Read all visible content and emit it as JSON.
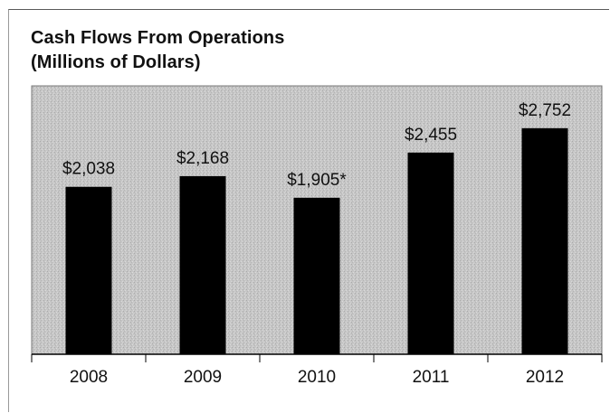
{
  "chart_data": {
    "type": "bar",
    "title": "Cash Flows From Operations",
    "subtitle": "(Millions of Dollars)",
    "categories": [
      "2008",
      "2009",
      "2010",
      "2011",
      "2012"
    ],
    "values": [
      2038,
      2168,
      1905,
      2455,
      2752
    ],
    "value_labels": [
      "$2,038",
      "$2,168",
      "$1,905*",
      "$2,455",
      "$2,752"
    ],
    "xlabel": "",
    "ylabel": "",
    "ylim": [
      0,
      3000
    ],
    "grid": false,
    "legend": "none",
    "colors": {
      "bar": "#000000",
      "plot_background": "#c9c9c9"
    }
  }
}
